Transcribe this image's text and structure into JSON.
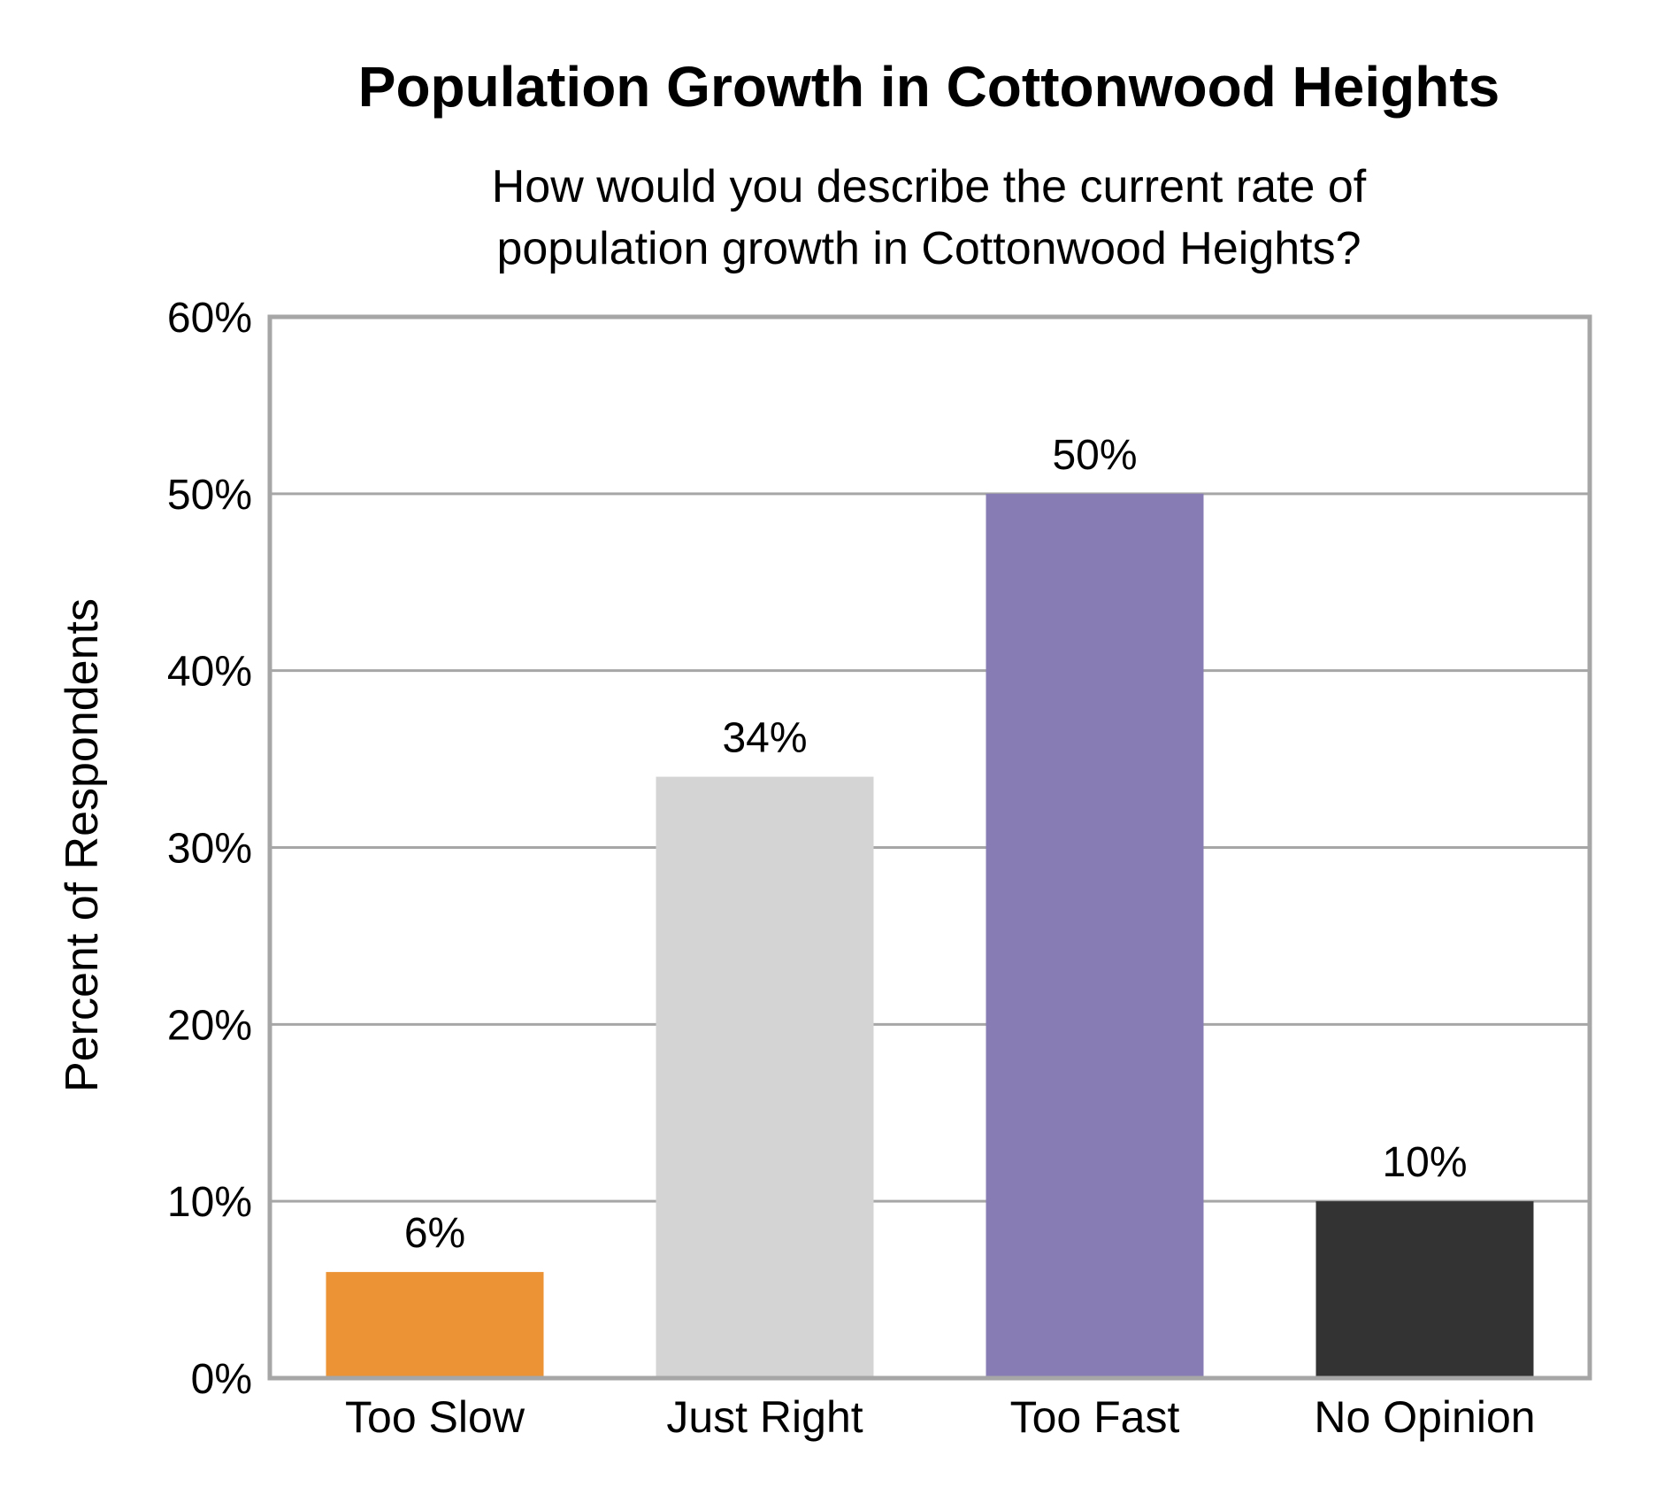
{
  "chart_data": {
    "type": "bar",
    "title": "Population Growth in Cottonwood Heights",
    "subtitle_lines": [
      "How would you describe the current rate of",
      "population growth in Cottonwood Heights?"
    ],
    "ylabel": "Percent of Respondents",
    "xlabel": "",
    "ylim": [
      0,
      60
    ],
    "y_ticks": [
      0,
      10,
      20,
      30,
      40,
      50,
      60
    ],
    "y_tick_labels": [
      "0%",
      "10%",
      "20%",
      "30%",
      "40%",
      "50%",
      "60%"
    ],
    "grid": true,
    "categories": [
      "Too Slow",
      "Just Right",
      "Too Fast",
      "No Opinion"
    ],
    "values": [
      6,
      34,
      50,
      10
    ],
    "data_labels": [
      "6%",
      "34%",
      "50%",
      "10%"
    ],
    "colors": [
      "#ec9335",
      "#d4d4d4",
      "#887cb4",
      "#333333"
    ],
    "axis_color": "#a6a6a6"
  }
}
